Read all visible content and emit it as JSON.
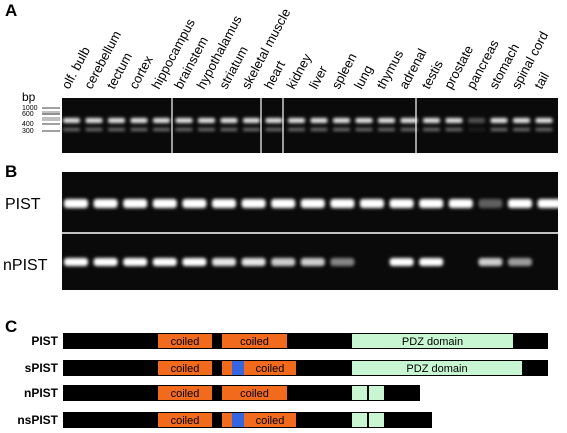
{
  "panels": [
    {
      "label": "A",
      "lanes": [
        "olf. bulb",
        "cerebellum",
        "tectum",
        "cortex",
        "hippocampus",
        "brainstem",
        "hypothalamus",
        "striatum",
        "skeletal muscle",
        "heart",
        "kidney",
        "liver",
        "spleen",
        "lung",
        "thymus",
        "adrenal",
        "testis",
        "prostate",
        "pancreas",
        "stomach",
        "spinal cord",
        "tail"
      ],
      "size_unit": "bp",
      "size_markers": [
        "1000",
        "600",
        "400",
        "300"
      ]
    },
    {
      "label": "B",
      "rows": [
        "PIST",
        "nPIST"
      ]
    },
    {
      "label": "C",
      "constructs": [
        {
          "name": "PIST",
          "domains": [
            "coiled",
            "coiled",
            "PDZ domain"
          ]
        },
        {
          "name": "sPIST",
          "domains": [
            "coiled",
            "coiled",
            "PDZ domain"
          ]
        },
        {
          "name": "nPIST",
          "domains": [
            "coiled",
            "coiled"
          ]
        },
        {
          "name": "nsPIST",
          "domains": [
            "coiled",
            "coiled"
          ]
        }
      ]
    }
  ]
}
